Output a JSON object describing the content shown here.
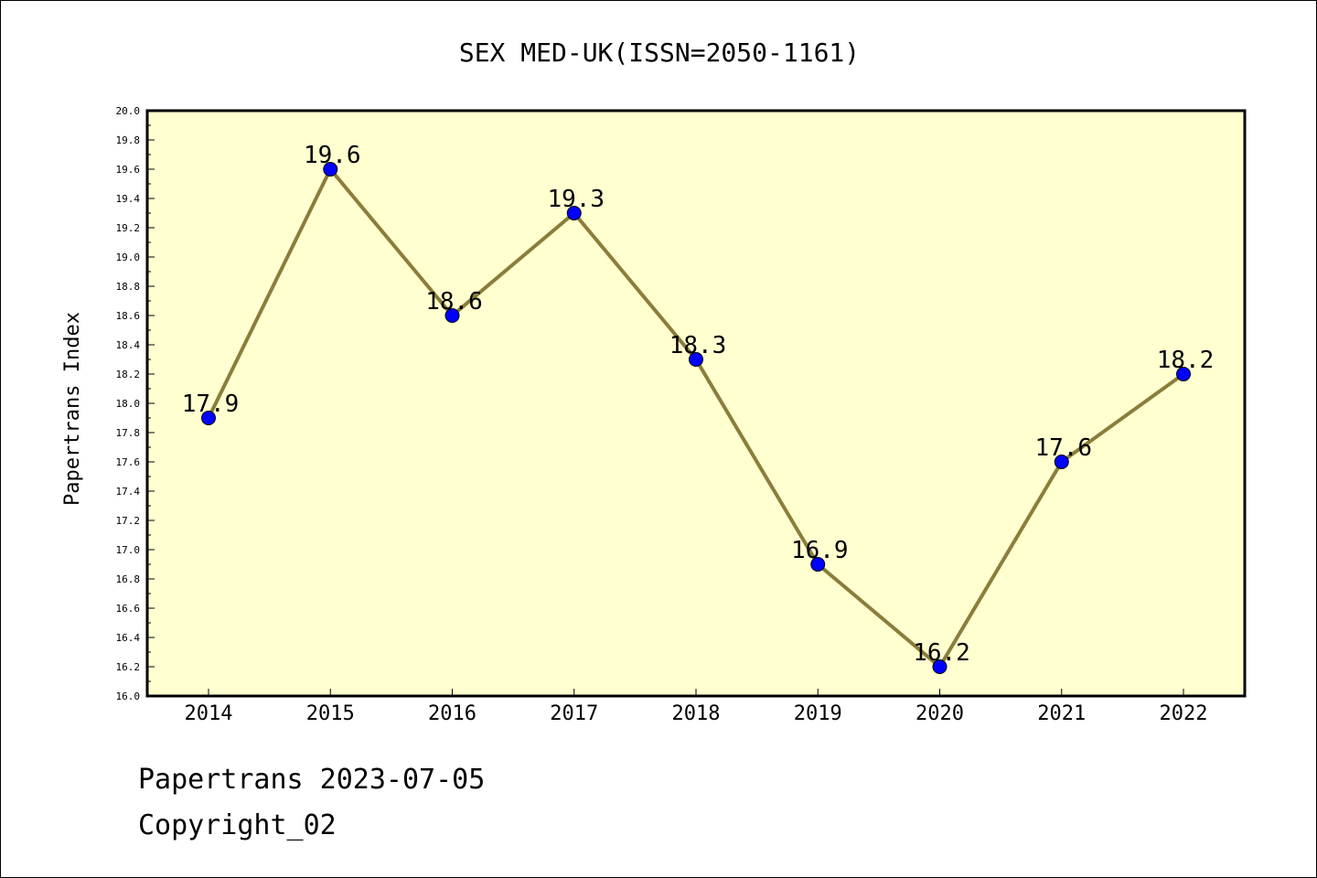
{
  "chart_data": {
    "type": "line",
    "title": "SEX MED-UK(ISSN=2050-1161)",
    "xlabel": "",
    "ylabel": "Papertrans Index",
    "categories": [
      "2014",
      "2015",
      "2016",
      "2017",
      "2018",
      "2019",
      "2020",
      "2021",
      "2022"
    ],
    "values": [
      17.9,
      19.6,
      18.6,
      19.3,
      18.3,
      16.9,
      16.2,
      17.6,
      18.2
    ],
    "data_labels": [
      "17.9",
      "19.6",
      "18.6",
      "19.3",
      "18.3",
      "16.9",
      "16.2",
      "17.6",
      "18.2"
    ],
    "ylim": [
      16.0,
      20.0
    ],
    "ytick_labels": [
      "16.0",
      "16.2",
      "16.4",
      "16.6",
      "16.8",
      "17.0",
      "17.2",
      "17.4",
      "17.6",
      "17.8",
      "18.0",
      "18.2",
      "18.4",
      "18.6",
      "18.8",
      "19.0",
      "19.2",
      "19.4",
      "19.6",
      "19.8",
      "20.0"
    ],
    "grid": false,
    "legend": "none",
    "colors": {
      "plot_background": "#ffffd0",
      "line": "#8b7d3a",
      "marker": "#0000ff"
    }
  },
  "footer": {
    "line1": "Papertrans 2023-07-05",
    "line2": "Copyright_02"
  }
}
